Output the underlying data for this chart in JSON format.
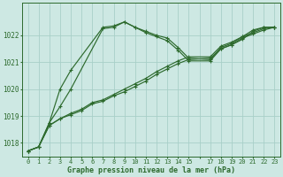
{
  "background_color": "#cde8e3",
  "grid_color": "#a8cfc8",
  "line_color": "#2d6a2d",
  "ylim": [
    1017.5,
    1023.2
  ],
  "xlim": [
    -0.5,
    23.5
  ],
  "yticks": [
    1018,
    1019,
    1020,
    1021,
    1022
  ],
  "xtick_labels": [
    "0",
    "1",
    "2",
    "3",
    "4",
    "5",
    "6",
    "7",
    "8",
    "9",
    "10",
    "11",
    "12",
    "13",
    "14",
    "15",
    "",
    "17",
    "18",
    "19",
    "20",
    "21",
    "22",
    "23"
  ],
  "xlabel": "Graphe pression niveau de la mer (hPa)",
  "lines": [
    {
      "x": [
        0,
        1,
        2,
        3,
        4,
        7,
        8,
        9,
        10,
        11,
        12,
        13,
        14,
        15,
        17,
        18,
        19,
        20,
        21,
        22,
        23
      ],
      "y": [
        1017.7,
        1017.85,
        1018.75,
        1020.0,
        1020.7,
        1022.3,
        1022.35,
        1022.5,
        1022.3,
        1022.15,
        1022.0,
        1021.9,
        1021.55,
        1021.15,
        1021.1,
        1021.55,
        1021.7,
        1021.95,
        1022.2,
        1022.3,
        1022.3
      ]
    },
    {
      "x": [
        0,
        1,
        2,
        3,
        4,
        7,
        8,
        9,
        10,
        11,
        12,
        13,
        14,
        15,
        17,
        18,
        19,
        20,
        21,
        22,
        23
      ],
      "y": [
        1017.7,
        1017.85,
        1018.75,
        1019.35,
        1020.0,
        1022.25,
        1022.3,
        1022.5,
        1022.3,
        1022.1,
        1021.95,
        1021.8,
        1021.45,
        1021.05,
        1021.05,
        1021.5,
        1021.65,
        1021.85,
        1022.15,
        1022.3,
        1022.3
      ]
    },
    {
      "x": [
        0,
        1,
        2,
        3,
        4,
        5,
        6,
        7,
        8,
        9,
        10,
        11,
        12,
        13,
        14,
        15,
        17,
        18,
        19,
        20,
        21,
        22,
        23
      ],
      "y": [
        1017.7,
        1017.85,
        1018.65,
        1018.9,
        1019.05,
        1019.2,
        1019.45,
        1019.55,
        1019.75,
        1019.9,
        1020.1,
        1020.3,
        1020.55,
        1020.75,
        1020.95,
        1021.1,
        1021.15,
        1021.5,
        1021.65,
        1021.9,
        1022.05,
        1022.2,
        1022.3
      ]
    },
    {
      "x": [
        0,
        1,
        2,
        3,
        4,
        5,
        6,
        7,
        8,
        9,
        10,
        11,
        12,
        13,
        14,
        15,
        17,
        18,
        19,
        20,
        21,
        22,
        23
      ],
      "y": [
        1017.7,
        1017.85,
        1018.65,
        1018.9,
        1019.1,
        1019.25,
        1019.5,
        1019.6,
        1019.8,
        1020.0,
        1020.2,
        1020.4,
        1020.65,
        1020.85,
        1021.05,
        1021.2,
        1021.2,
        1021.6,
        1021.75,
        1021.95,
        1022.1,
        1022.25,
        1022.3
      ]
    }
  ]
}
